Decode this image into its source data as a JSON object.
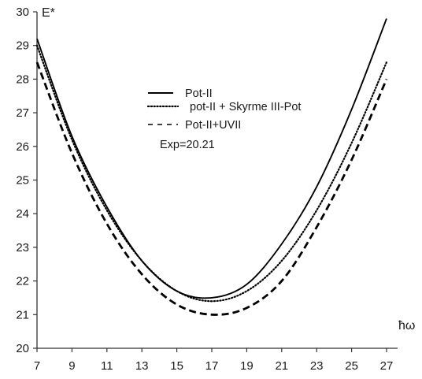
{
  "chart_data": {
    "type": "line",
    "title": "",
    "xlabel": "ħω",
    "ylabel": "E*",
    "xlim": [
      7,
      27
    ],
    "ylim": [
      20,
      30
    ],
    "x_ticks": [
      7,
      9,
      11,
      13,
      15,
      17,
      19,
      21,
      23,
      25,
      27
    ],
    "y_ticks": [
      20,
      21,
      22,
      23,
      24,
      25,
      26,
      27,
      28,
      29,
      30
    ],
    "grid": false,
    "legend_position": "upper-center",
    "annotation": "Exp=20.21",
    "series": [
      {
        "name": "Pot-II",
        "style": "solid",
        "color": "#000000",
        "x": [
          7,
          9,
          11,
          13,
          15,
          17,
          19,
          21,
          23,
          25,
          27
        ],
        "y": [
          29.2,
          26.3,
          24.2,
          22.6,
          21.7,
          21.5,
          21.9,
          23.1,
          24.8,
          27.1,
          29.8
        ]
      },
      {
        "name": "pot-II + Skyrme III-Pot",
        "style": "dotted",
        "color": "#000000",
        "x": [
          7,
          9,
          11,
          13,
          15,
          17,
          19,
          21,
          23,
          25,
          27
        ],
        "y": [
          29.0,
          26.2,
          24.1,
          22.6,
          21.7,
          21.4,
          21.7,
          22.6,
          24.1,
          26.1,
          28.5
        ]
      },
      {
        "name": "Pot-II+UVII",
        "style": "dashed",
        "color": "#000000",
        "x": [
          7,
          9,
          11,
          13,
          15,
          17,
          19,
          21,
          23,
          25,
          27
        ],
        "y": [
          28.5,
          25.8,
          23.7,
          22.2,
          21.3,
          21.0,
          21.2,
          22.0,
          23.6,
          25.6,
          28.0
        ]
      }
    ]
  }
}
